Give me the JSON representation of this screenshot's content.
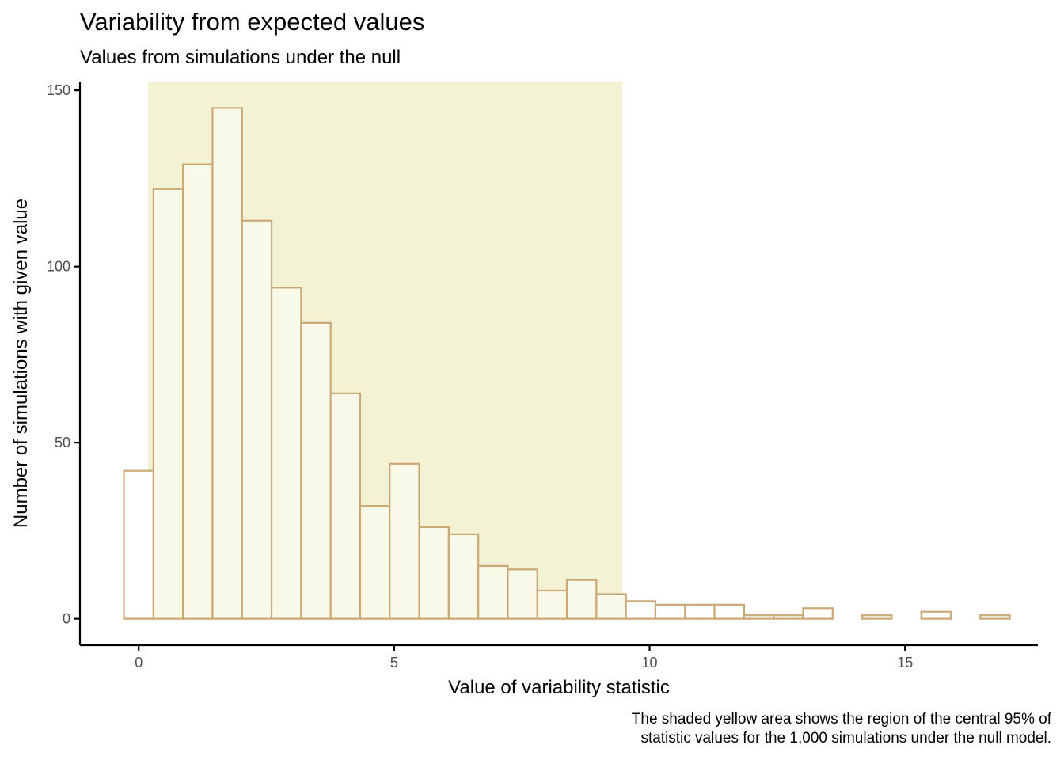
{
  "chart_data": {
    "type": "bar",
    "title": "Variability from expected values",
    "subtitle": "Values from simulations under the null",
    "xlabel": "Value of variability statistic",
    "ylabel": "Number of simulations with given value",
    "caption": "The shaded yellow area shows the region of the central 95% of statistic values for the 1,000 simulations under the null model.",
    "caption_lines": [
      "The shaded yellow area shows the region of the central 95% of",
      "statistic values for the 1,000 simulations under the null model."
    ],
    "xlim": [
      -1.15,
      17.6
    ],
    "ylim": [
      -7.5,
      152.5
    ],
    "x_ticks": [
      0,
      5,
      10,
      15
    ],
    "x_tick_labels": [
      "0",
      "5",
      "10",
      "15"
    ],
    "y_ticks": [
      0,
      50,
      100,
      150
    ],
    "y_tick_labels": [
      "0",
      "50",
      "100",
      "150"
    ],
    "grid": false,
    "bin_width": 0.578,
    "bin_centers": [
      0.0,
      0.578,
      1.156,
      1.734,
      2.312,
      2.89,
      3.468,
      4.046,
      4.624,
      5.202,
      5.78,
      6.358,
      6.936,
      7.514,
      8.092,
      8.67,
      9.248,
      9.826,
      10.404,
      10.982,
      11.56,
      12.138,
      12.716,
      13.294,
      13.872,
      14.45,
      15.028,
      15.606,
      16.184,
      16.762
    ],
    "counts": [
      42,
      122,
      129,
      145,
      113,
      94,
      84,
      64,
      32,
      44,
      26,
      24,
      15,
      14,
      8,
      11,
      7,
      5,
      4,
      4,
      4,
      1,
      1,
      3,
      0,
      1,
      0,
      2,
      0,
      1
    ],
    "shaded_region": {
      "label": "central 95%",
      "xmin": 0.18,
      "xmax": 9.47
    },
    "colors": {
      "bar_outline": "#cba977",
      "bar_fill_inside": "#f9f9ea",
      "bar_fill_outside": "#ffffff",
      "shade": "#f3f2d3",
      "axis": "#000000",
      "tick_text": "#4d4d4d"
    }
  }
}
